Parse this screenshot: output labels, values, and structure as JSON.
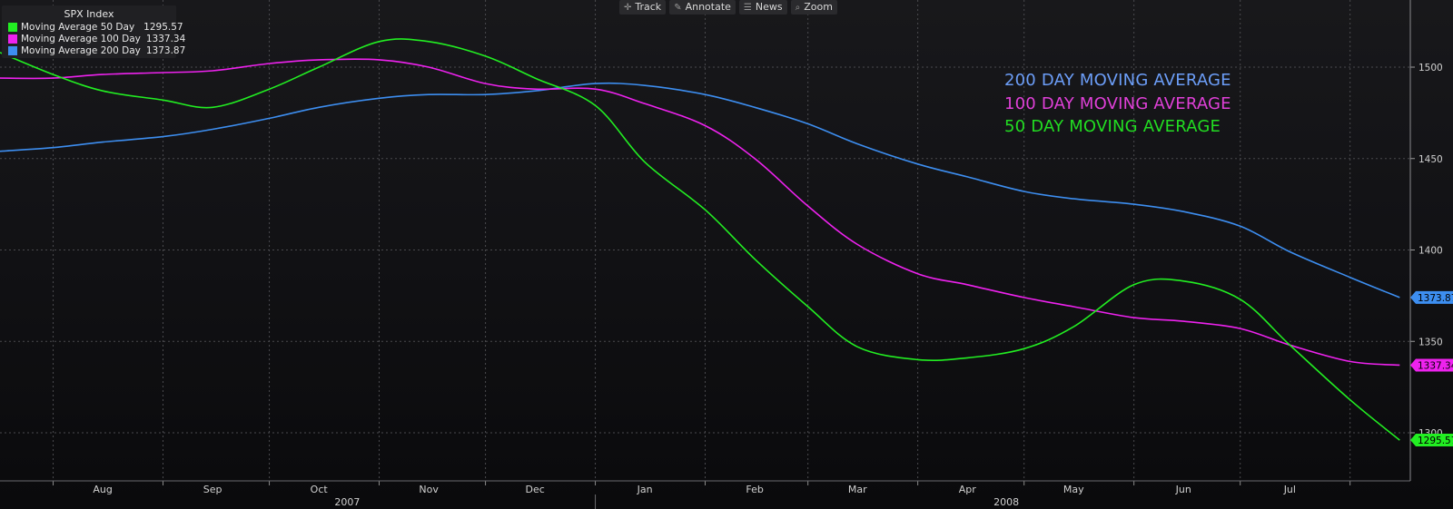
{
  "toolbar": {
    "items": [
      {
        "label": "Track",
        "icon": "crosshair-icon"
      },
      {
        "label": "Annotate",
        "icon": "pencil-icon"
      },
      {
        "label": "News",
        "icon": "news-icon"
      },
      {
        "label": "Zoom",
        "icon": "magnifier-icon"
      }
    ]
  },
  "chart_data": {
    "type": "line",
    "title": "SPX Index",
    "xlabel": "",
    "ylabel": "",
    "ylim": [
      1275,
      1500
    ],
    "y_ticks": [
      1300,
      1350,
      1400,
      1450,
      1500
    ],
    "x_range": [
      "2007-07-17",
      "2008-08-18"
    ],
    "months": [
      {
        "label": "Aug",
        "date": "2007-08-15"
      },
      {
        "label": "Sep",
        "date": "2007-09-15"
      },
      {
        "label": "Oct",
        "date": "2007-10-15"
      },
      {
        "label": "Nov",
        "date": "2007-11-15"
      },
      {
        "label": "Dec",
        "date": "2007-12-15"
      },
      {
        "label": "Jan",
        "date": "2008-01-15"
      },
      {
        "label": "Feb",
        "date": "2008-02-15"
      },
      {
        "label": "Mar",
        "date": "2008-03-15"
      },
      {
        "label": "Apr",
        "date": "2008-04-15"
      },
      {
        "label": "May",
        "date": "2008-05-15"
      },
      {
        "label": "Jun",
        "date": "2008-06-15"
      },
      {
        "label": "Jul",
        "date": "2008-07-15"
      }
    ],
    "years": [
      {
        "label": "2007",
        "date": "2007-10-23"
      },
      {
        "label": "2008",
        "date": "2008-04-26"
      }
    ],
    "grid": true,
    "legend": {
      "position": "top-left",
      "title": "SPX Index",
      "items": [
        {
          "label": "Moving Average 50 Day",
          "value": "1295.57"
        },
        {
          "label": "Moving Average 100 Day",
          "value": "1337.34"
        },
        {
          "label": "Moving Average 200 Day",
          "value": "1373.87"
        }
      ]
    },
    "annotations": [
      {
        "text": "200 DAY MOVING AVERAGE",
        "color": "#6c9ef8"
      },
      {
        "text": "100 DAY MOVING AVERAGE",
        "color": "#e040d8"
      },
      {
        "text": "50 DAY MOVING AVERAGE",
        "color": "#22dd22"
      }
    ],
    "series": [
      {
        "name": "Moving Average 200 Day",
        "color": "#3d8ef0",
        "last_value": "1373.87",
        "points": [
          [
            "2007-07-17",
            1454
          ],
          [
            "2007-08-01",
            1456
          ],
          [
            "2007-08-15",
            1459
          ],
          [
            "2007-09-01",
            1462
          ],
          [
            "2007-09-15",
            1466
          ],
          [
            "2007-10-01",
            1472
          ],
          [
            "2007-10-15",
            1478
          ],
          [
            "2007-11-01",
            1483
          ],
          [
            "2007-11-15",
            1485
          ],
          [
            "2007-12-01",
            1485
          ],
          [
            "2007-12-15",
            1487
          ],
          [
            "2008-01-01",
            1491
          ],
          [
            "2008-01-15",
            1490
          ],
          [
            "2008-02-01",
            1485
          ],
          [
            "2008-02-15",
            1478
          ],
          [
            "2008-03-01",
            1469
          ],
          [
            "2008-03-15",
            1458
          ],
          [
            "2008-04-01",
            1447
          ],
          [
            "2008-04-15",
            1440
          ],
          [
            "2008-05-01",
            1432
          ],
          [
            "2008-05-15",
            1428
          ],
          [
            "2008-06-01",
            1425
          ],
          [
            "2008-06-15",
            1421
          ],
          [
            "2008-07-01",
            1413
          ],
          [
            "2008-07-15",
            1399
          ],
          [
            "2008-08-01",
            1385
          ],
          [
            "2008-08-15",
            1374
          ]
        ]
      },
      {
        "name": "Moving Average 100 Day",
        "color": "#ee22ee",
        "last_value": "1337.34",
        "points": [
          [
            "2007-07-17",
            1494
          ],
          [
            "2007-08-01",
            1494
          ],
          [
            "2007-08-15",
            1496
          ],
          [
            "2007-09-01",
            1497
          ],
          [
            "2007-09-15",
            1498
          ],
          [
            "2007-10-01",
            1502
          ],
          [
            "2007-10-15",
            1504
          ],
          [
            "2007-11-01",
            1504
          ],
          [
            "2007-11-15",
            1500
          ],
          [
            "2007-12-01",
            1491
          ],
          [
            "2007-12-15",
            1488
          ],
          [
            "2008-01-01",
            1488
          ],
          [
            "2008-01-15",
            1480
          ],
          [
            "2008-02-01",
            1468
          ],
          [
            "2008-02-15",
            1450
          ],
          [
            "2008-03-01",
            1424
          ],
          [
            "2008-03-15",
            1403
          ],
          [
            "2008-04-01",
            1387
          ],
          [
            "2008-04-15",
            1381
          ],
          [
            "2008-05-01",
            1374
          ],
          [
            "2008-05-15",
            1369
          ],
          [
            "2008-06-01",
            1363
          ],
          [
            "2008-06-15",
            1361
          ],
          [
            "2008-07-01",
            1357
          ],
          [
            "2008-07-15",
            1348
          ],
          [
            "2008-08-01",
            1339
          ],
          [
            "2008-08-15",
            1337
          ]
        ]
      },
      {
        "name": "Moving Average 50 Day",
        "color": "#22ee22",
        "last_value": "1295.57",
        "points": [
          [
            "2007-07-17",
            1508
          ],
          [
            "2007-08-01",
            1496
          ],
          [
            "2007-08-15",
            1487
          ],
          [
            "2007-09-01",
            1482
          ],
          [
            "2007-09-15",
            1478
          ],
          [
            "2007-10-01",
            1488
          ],
          [
            "2007-10-15",
            1500
          ],
          [
            "2007-11-01",
            1514
          ],
          [
            "2007-11-15",
            1514
          ],
          [
            "2007-12-01",
            1506
          ],
          [
            "2007-12-15",
            1494
          ],
          [
            "2008-01-01",
            1479
          ],
          [
            "2008-01-15",
            1448
          ],
          [
            "2008-02-01",
            1422
          ],
          [
            "2008-02-15",
            1395
          ],
          [
            "2008-03-01",
            1369
          ],
          [
            "2008-03-15",
            1347
          ],
          [
            "2008-04-01",
            1340
          ],
          [
            "2008-04-15",
            1341
          ],
          [
            "2008-05-01",
            1346
          ],
          [
            "2008-05-15",
            1358
          ],
          [
            "2008-06-01",
            1381
          ],
          [
            "2008-06-15",
            1383
          ],
          [
            "2008-07-01",
            1373
          ],
          [
            "2008-07-15",
            1348
          ],
          [
            "2008-08-01",
            1318
          ],
          [
            "2008-08-15",
            1296
          ]
        ]
      }
    ]
  }
}
